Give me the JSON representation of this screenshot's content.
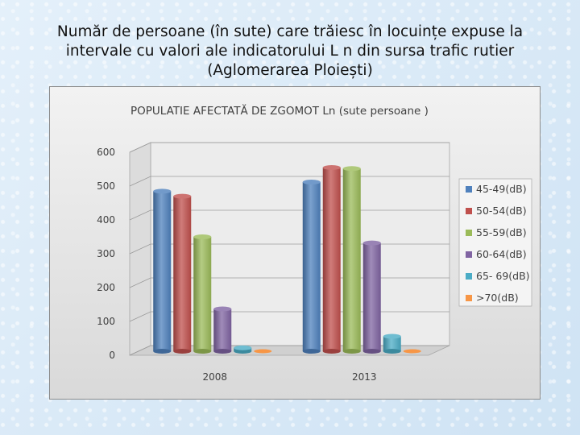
{
  "page": {
    "title": "Număr de persoane (în sute) care trăiesc în locuințe expuse la intervale cu valori ale indicatorului L n din sursa trafic rutier (Aglomerarea Ploiești)"
  },
  "chart_data": {
    "type": "bar",
    "title": "POPULATIE AFECTATĂ DE ZGOMOT  Ln (sute persoane )",
    "categories": [
      "2008",
      "2013"
    ],
    "series": [
      {
        "name": "45-49(dB)",
        "values": [
          473,
          500
        ],
        "color": "#4f81bd"
      },
      {
        "name": "50-54(dB)",
        "values": [
          458,
          543
        ],
        "color": "#c0504d"
      },
      {
        "name": "55-59(dB)",
        "values": [
          338,
          540
        ],
        "color": "#9bbb59"
      },
      {
        "name": "60-64(dB)",
        "values": [
          125,
          320
        ],
        "color": "#8064a2"
      },
      {
        "name": "65- 69(dB)",
        "values": [
          10,
          44
        ],
        "color": "#4bacc6"
      },
      {
        "name": ">70(dB)",
        "values": [
          2,
          2
        ],
        "color": "#f79646"
      }
    ],
    "yticks": [
      "0",
      "100",
      "200",
      "300",
      "400",
      "500",
      "600"
    ],
    "ylim": [
      0,
      600
    ],
    "grid": true,
    "legend_position": "right",
    "style": "3d-column"
  }
}
